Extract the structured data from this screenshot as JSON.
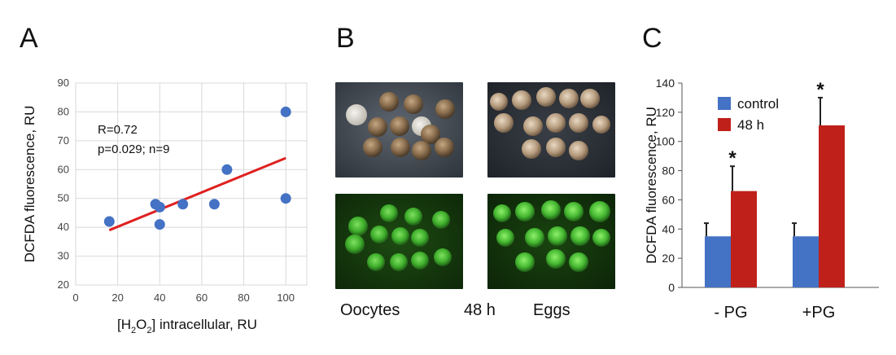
{
  "panels": {
    "a": "A",
    "b": "B",
    "c": "C"
  },
  "colors": {
    "scatter_point": "#4472c4",
    "fit_line": "#e02020",
    "control": "#4472c4",
    "h48": "#c0201a",
    "grid": "#d9d9d9"
  },
  "chart_data": [
    {
      "type": "scatter",
      "panel": "A",
      "xlabel_parts": {
        "pre": "[H",
        "sub1": "2",
        "mid": "O",
        "sub2": "2",
        "post": "] intracellular, RU"
      },
      "ylabel": "DCFDA fluorescence, RU",
      "xlim": [
        0,
        110
      ],
      "ylim": [
        20,
        90
      ],
      "xticks": [
        0,
        20,
        40,
        60,
        80,
        100
      ],
      "yticks": [
        20,
        30,
        40,
        50,
        60,
        70,
        80,
        90
      ],
      "grid": true,
      "points": [
        {
          "x": 16,
          "y": 42
        },
        {
          "x": 38,
          "y": 48
        },
        {
          "x": 40,
          "y": 47
        },
        {
          "x": 40,
          "y": 41
        },
        {
          "x": 51,
          "y": 48
        },
        {
          "x": 66,
          "y": 48
        },
        {
          "x": 72,
          "y": 60
        },
        {
          "x": 100,
          "y": 80
        },
        {
          "x": 100,
          "y": 50
        }
      ],
      "fit": {
        "x0": 16,
        "y0": 39,
        "x1": 100,
        "y1": 64
      },
      "annotations": [
        "R=0.72",
        "p=0.029; n=9"
      ]
    },
    {
      "type": "bar",
      "panel": "C",
      "categories": [
        "- PG",
        "+PG"
      ],
      "series": [
        {
          "name": "control",
          "values": [
            35,
            35
          ],
          "errors": [
            9,
            9
          ]
        },
        {
          "name": "48 h",
          "values": [
            66,
            111
          ],
          "errors": [
            17,
            19
          ]
        }
      ],
      "significance": [
        "*",
        "*"
      ],
      "ylabel": "DCFDA fluorescence, RU",
      "ylim": [
        0,
        140
      ],
      "yticks": [
        0,
        20,
        40,
        60,
        80,
        100,
        120,
        140
      ],
      "legend_position": "top-left"
    }
  ],
  "panel_b": {
    "captions": {
      "left": "Oocytes",
      "middle": "48 h",
      "right": "Eggs"
    }
  }
}
